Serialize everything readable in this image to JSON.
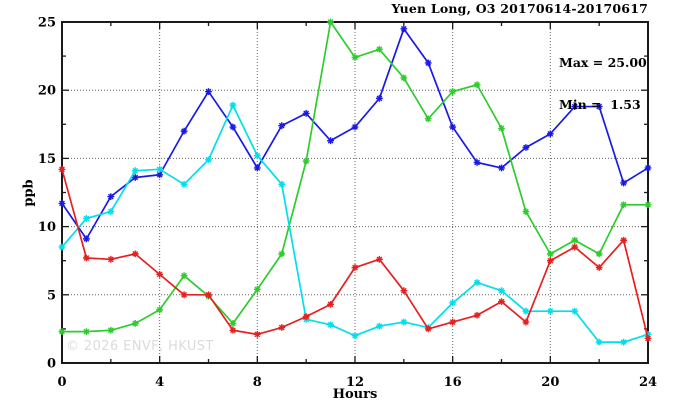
{
  "header": {
    "title": "Yuen Long, O3 20170614-20170617"
  },
  "stats": {
    "max_label": "Max = 25.00",
    "min_label": "Min =  1.53"
  },
  "watermark": "© 2026 ENVF, HKUST",
  "chart_data": {
    "type": "line",
    "title": "Yuen Long, O3 20170614-20170617",
    "xlabel": "Hours",
    "ylabel": "ppb",
    "xlim": [
      0,
      24
    ],
    "ylim": [
      0,
      25
    ],
    "x_major_ticks": [
      0,
      4,
      8,
      12,
      16,
      20,
      24
    ],
    "x_minor_ticks": [
      2,
      6,
      10,
      14,
      18,
      22
    ],
    "y_major_ticks": [
      0,
      5,
      10,
      15,
      20,
      25
    ],
    "y_minor_ticks": [
      2.5,
      7.5,
      12.5,
      17.5,
      22.5
    ],
    "grid_x": [
      4,
      8,
      12,
      16,
      20
    ],
    "grid_y": [
      5,
      10,
      15,
      20
    ],
    "grid_color": "#666666",
    "axis_color": "#1a1a1a",
    "legend": "none",
    "max": 25.0,
    "min": 1.53,
    "x": [
      0,
      1,
      2,
      3,
      4,
      5,
      6,
      7,
      8,
      9,
      10,
      11,
      12,
      13,
      14,
      15,
      16,
      17,
      18,
      19,
      20,
      21,
      22,
      23,
      24
    ],
    "series": [
      {
        "name": "series-blue",
        "color": "#1a1ae6",
        "values": [
          11.7,
          9.1,
          12.2,
          13.6,
          13.8,
          17.0,
          19.9,
          17.3,
          14.3,
          17.4,
          18.3,
          16.3,
          17.3,
          19.4,
          24.5,
          22.0,
          17.3,
          14.7,
          14.3,
          15.8,
          16.8,
          18.8,
          18.8,
          13.2,
          14.3
        ]
      },
      {
        "name": "series-green",
        "color": "#2ecc2e",
        "values": [
          2.3,
          2.3,
          2.4,
          2.9,
          3.9,
          6.4,
          4.9,
          2.9,
          5.4,
          8.0,
          14.8,
          25.0,
          22.4,
          23.0,
          20.9,
          17.9,
          19.9,
          20.4,
          17.2,
          11.1,
          8.0,
          9.0,
          8.0,
          11.6,
          11.6
        ]
      },
      {
        "name": "series-cyan",
        "color": "#00dfeb",
        "values": [
          8.5,
          10.6,
          11.1,
          14.1,
          14.2,
          13.1,
          14.9,
          18.9,
          15.2,
          13.1,
          3.2,
          2.8,
          2.0,
          2.7,
          3.0,
          2.6,
          4.4,
          5.9,
          5.3,
          3.8,
          3.8,
          3.8,
          1.53,
          1.53,
          2.1
        ]
      },
      {
        "name": "series-red",
        "color": "#e62020",
        "values": [
          14.2,
          7.7,
          7.6,
          8.0,
          6.5,
          5.0,
          5.0,
          2.4,
          2.1,
          2.6,
          3.4,
          4.3,
          7.0,
          7.6,
          5.3,
          2.5,
          3.0,
          3.5,
          4.5,
          3.0,
          7.5,
          8.5,
          7.0,
          9.0,
          1.8
        ]
      }
    ]
  }
}
